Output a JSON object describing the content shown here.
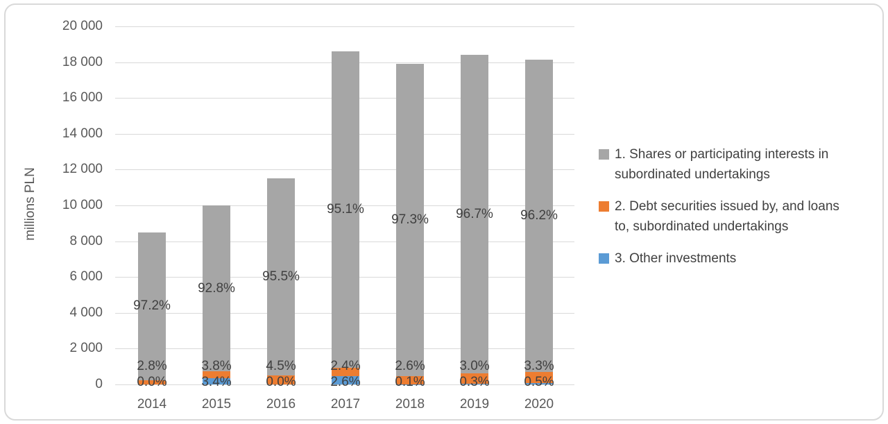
{
  "chart_data": {
    "type": "bar",
    "stacked": true,
    "title": "",
    "ylabel": "millions PLN",
    "ylim": [
      0,
      20000
    ],
    "ytick_step": 2000,
    "ytick_labels": [
      "0",
      "2 000",
      "4 000",
      "6 000",
      "8 000",
      "10 000",
      "12 000",
      "14 000",
      "16 000",
      "18 000",
      "20 000"
    ],
    "grid": true,
    "legend_position": "right",
    "categories": [
      "2014",
      "2015",
      "2016",
      "2017",
      "2018",
      "2019",
      "2020"
    ],
    "totals_millions_pln": [
      8500,
      10000,
      11500,
      18600,
      17900,
      18400,
      18150
    ],
    "series": [
      {
        "name": "1. Shares or participating interests in subordinated undertakings",
        "color": "#a6a6a6",
        "stack_position": "top",
        "pct": [
          97.2,
          92.8,
          95.5,
          95.1,
          97.3,
          96.7,
          96.2
        ],
        "pct_labels": [
          "97.2%",
          "92.8%",
          "95.5%",
          "95.1%",
          "97.3%",
          "96.7%",
          "96.2%"
        ]
      },
      {
        "name": "2. Debt securities issued by, and loans to, subordinated undertakings",
        "color": "#ed7d31",
        "stack_position": "middle",
        "pct": [
          2.8,
          3.8,
          4.5,
          2.4,
          2.6,
          3.0,
          3.3
        ],
        "pct_labels": [
          "2.8%",
          "3.8%",
          "4.5%",
          "2.4%",
          "2.6%",
          "3.0%",
          "3.3%"
        ]
      },
      {
        "name": "3. Other investments",
        "color": "#5b9bd5",
        "stack_position": "bottom",
        "pct": [
          0.0,
          3.4,
          0.0,
          2.6,
          0.1,
          0.3,
          0.5
        ],
        "pct_labels": [
          "0.0%",
          "3.4%",
          "0.0%",
          "2.6%",
          "0.1%",
          "0.3%",
          "0.5%"
        ]
      }
    ],
    "legend": {
      "items": [
        {
          "color": "#a6a6a6",
          "lines": [
            "1. Shares or participating interests in",
            "subordinated undertakings"
          ]
        },
        {
          "color": "#ed7d31",
          "lines": [
            "2. Debt securities issued by, and loans",
            "to, subordinated undertakings"
          ]
        },
        {
          "color": "#5b9bd5",
          "lines": [
            "3. Other investments"
          ]
        }
      ]
    }
  },
  "colors": {
    "grid": "#d9d9d9",
    "axis_text": "#595959",
    "label_text": "#404040",
    "frame_border": "#d9d9d9",
    "background": "#ffffff"
  }
}
